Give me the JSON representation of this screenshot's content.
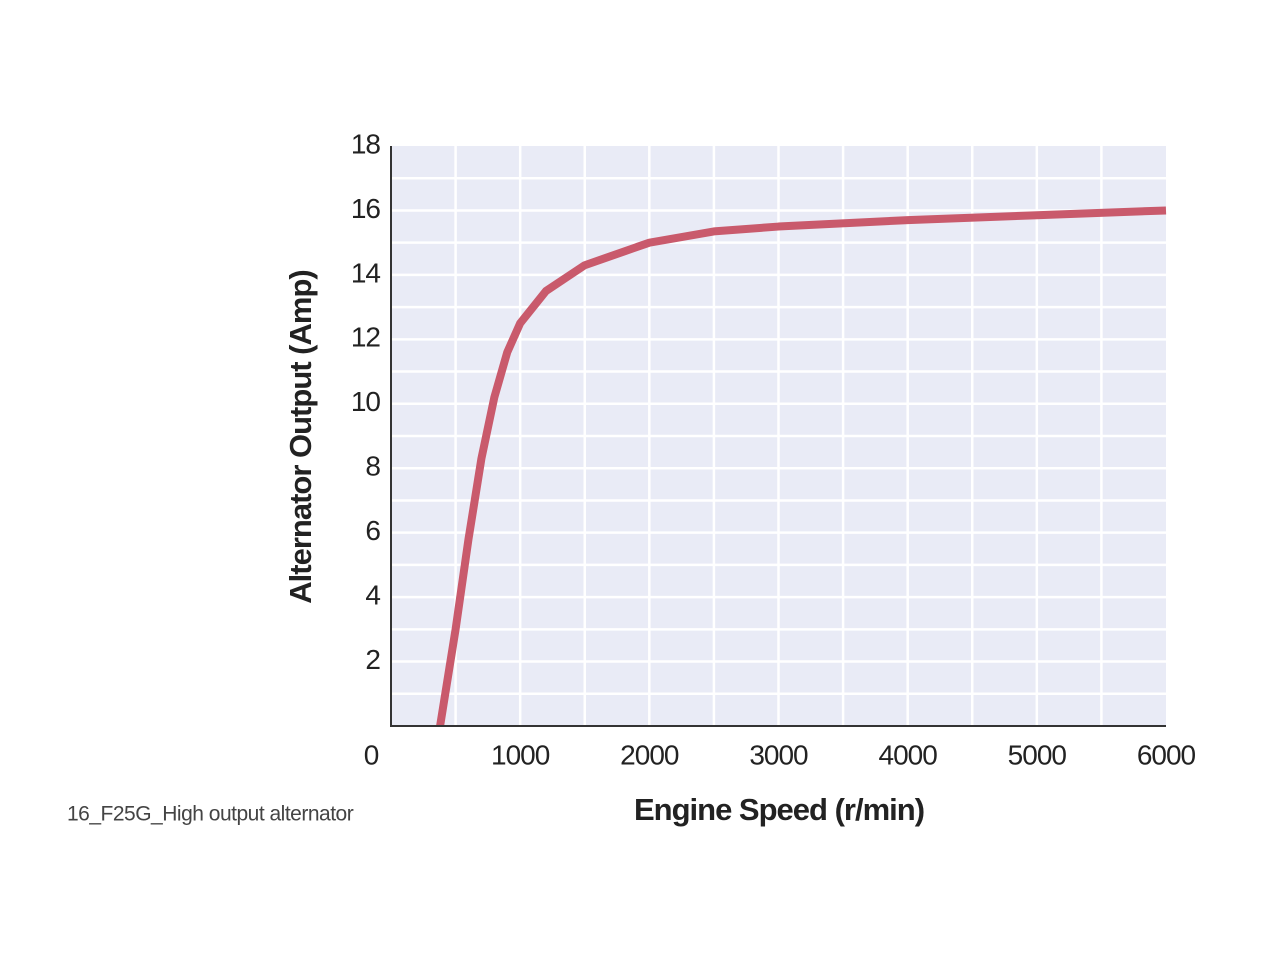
{
  "chart_data": {
    "type": "line",
    "x_label": "Engine Speed (r/min)",
    "y_label": "Alternator Output (Amp)",
    "caption": "16_F25G_High output alternator",
    "x": [
      380,
      500,
      600,
      700,
      800,
      900,
      1000,
      1200,
      1500,
      2000,
      2500,
      3000,
      4000,
      5000,
      6000
    ],
    "series": [
      {
        "color": "#c95a6c",
        "values": [
          0,
          3,
          5.8,
          8.3,
          10.2,
          11.6,
          12.5,
          13.5,
          14.3,
          15.0,
          15.35,
          15.5,
          15.7,
          15.85,
          16.0
        ]
      }
    ],
    "xlim": [
      0,
      6000
    ],
    "xticks": [
      0,
      1000,
      2000,
      3000,
      4000,
      5000,
      6000
    ],
    "ylim": [
      0,
      18
    ],
    "yticks": [
      2,
      4,
      6,
      8,
      10,
      12,
      14,
      16,
      18
    ],
    "minor_xticks": [
      500,
      1500,
      2500,
      3500,
      4500,
      5500
    ],
    "minor_yticks": [
      1,
      3,
      5,
      7,
      9,
      11,
      13,
      15,
      17
    ],
    "grid": true,
    "plot_background": "#e9ebf6",
    "grid_color": "#ffffff"
  }
}
